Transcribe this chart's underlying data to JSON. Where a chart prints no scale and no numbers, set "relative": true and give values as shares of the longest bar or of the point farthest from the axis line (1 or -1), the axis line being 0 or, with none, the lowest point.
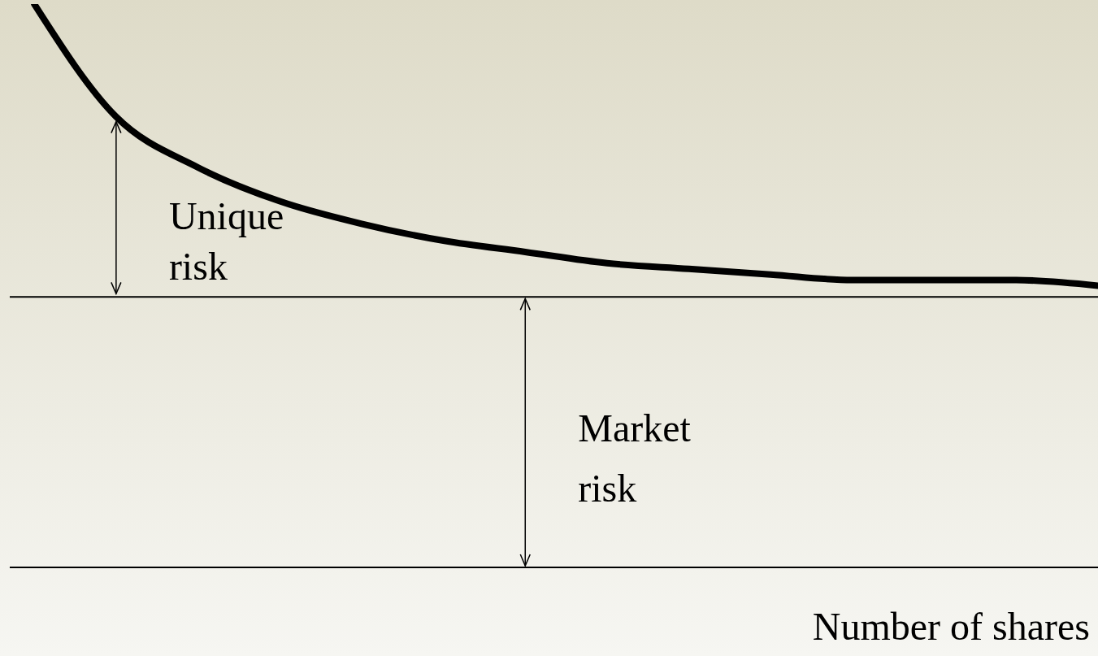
{
  "chart_data": {
    "type": "line",
    "relative": true,
    "xlabel": "Number of shares",
    "categories": [
      null,
      null,
      null,
      null,
      null,
      null,
      null,
      null,
      null,
      null,
      null,
      null,
      null,
      null
    ],
    "series": [
      {
        "color": "#000000",
        "values": [
          1,
          0.8,
          0.71,
          0.65,
          0.61,
          0.58,
          0.56,
          0.54,
          0.53,
          0.52,
          0.51,
          0.51,
          0.51,
          0.5
        ]
      }
    ],
    "ref_lines": [
      {
        "axis": "y",
        "value": 0.48,
        "color": "#000000"
      }
    ],
    "annotations": [
      "Unique risk",
      "Market risk"
    ]
  }
}
